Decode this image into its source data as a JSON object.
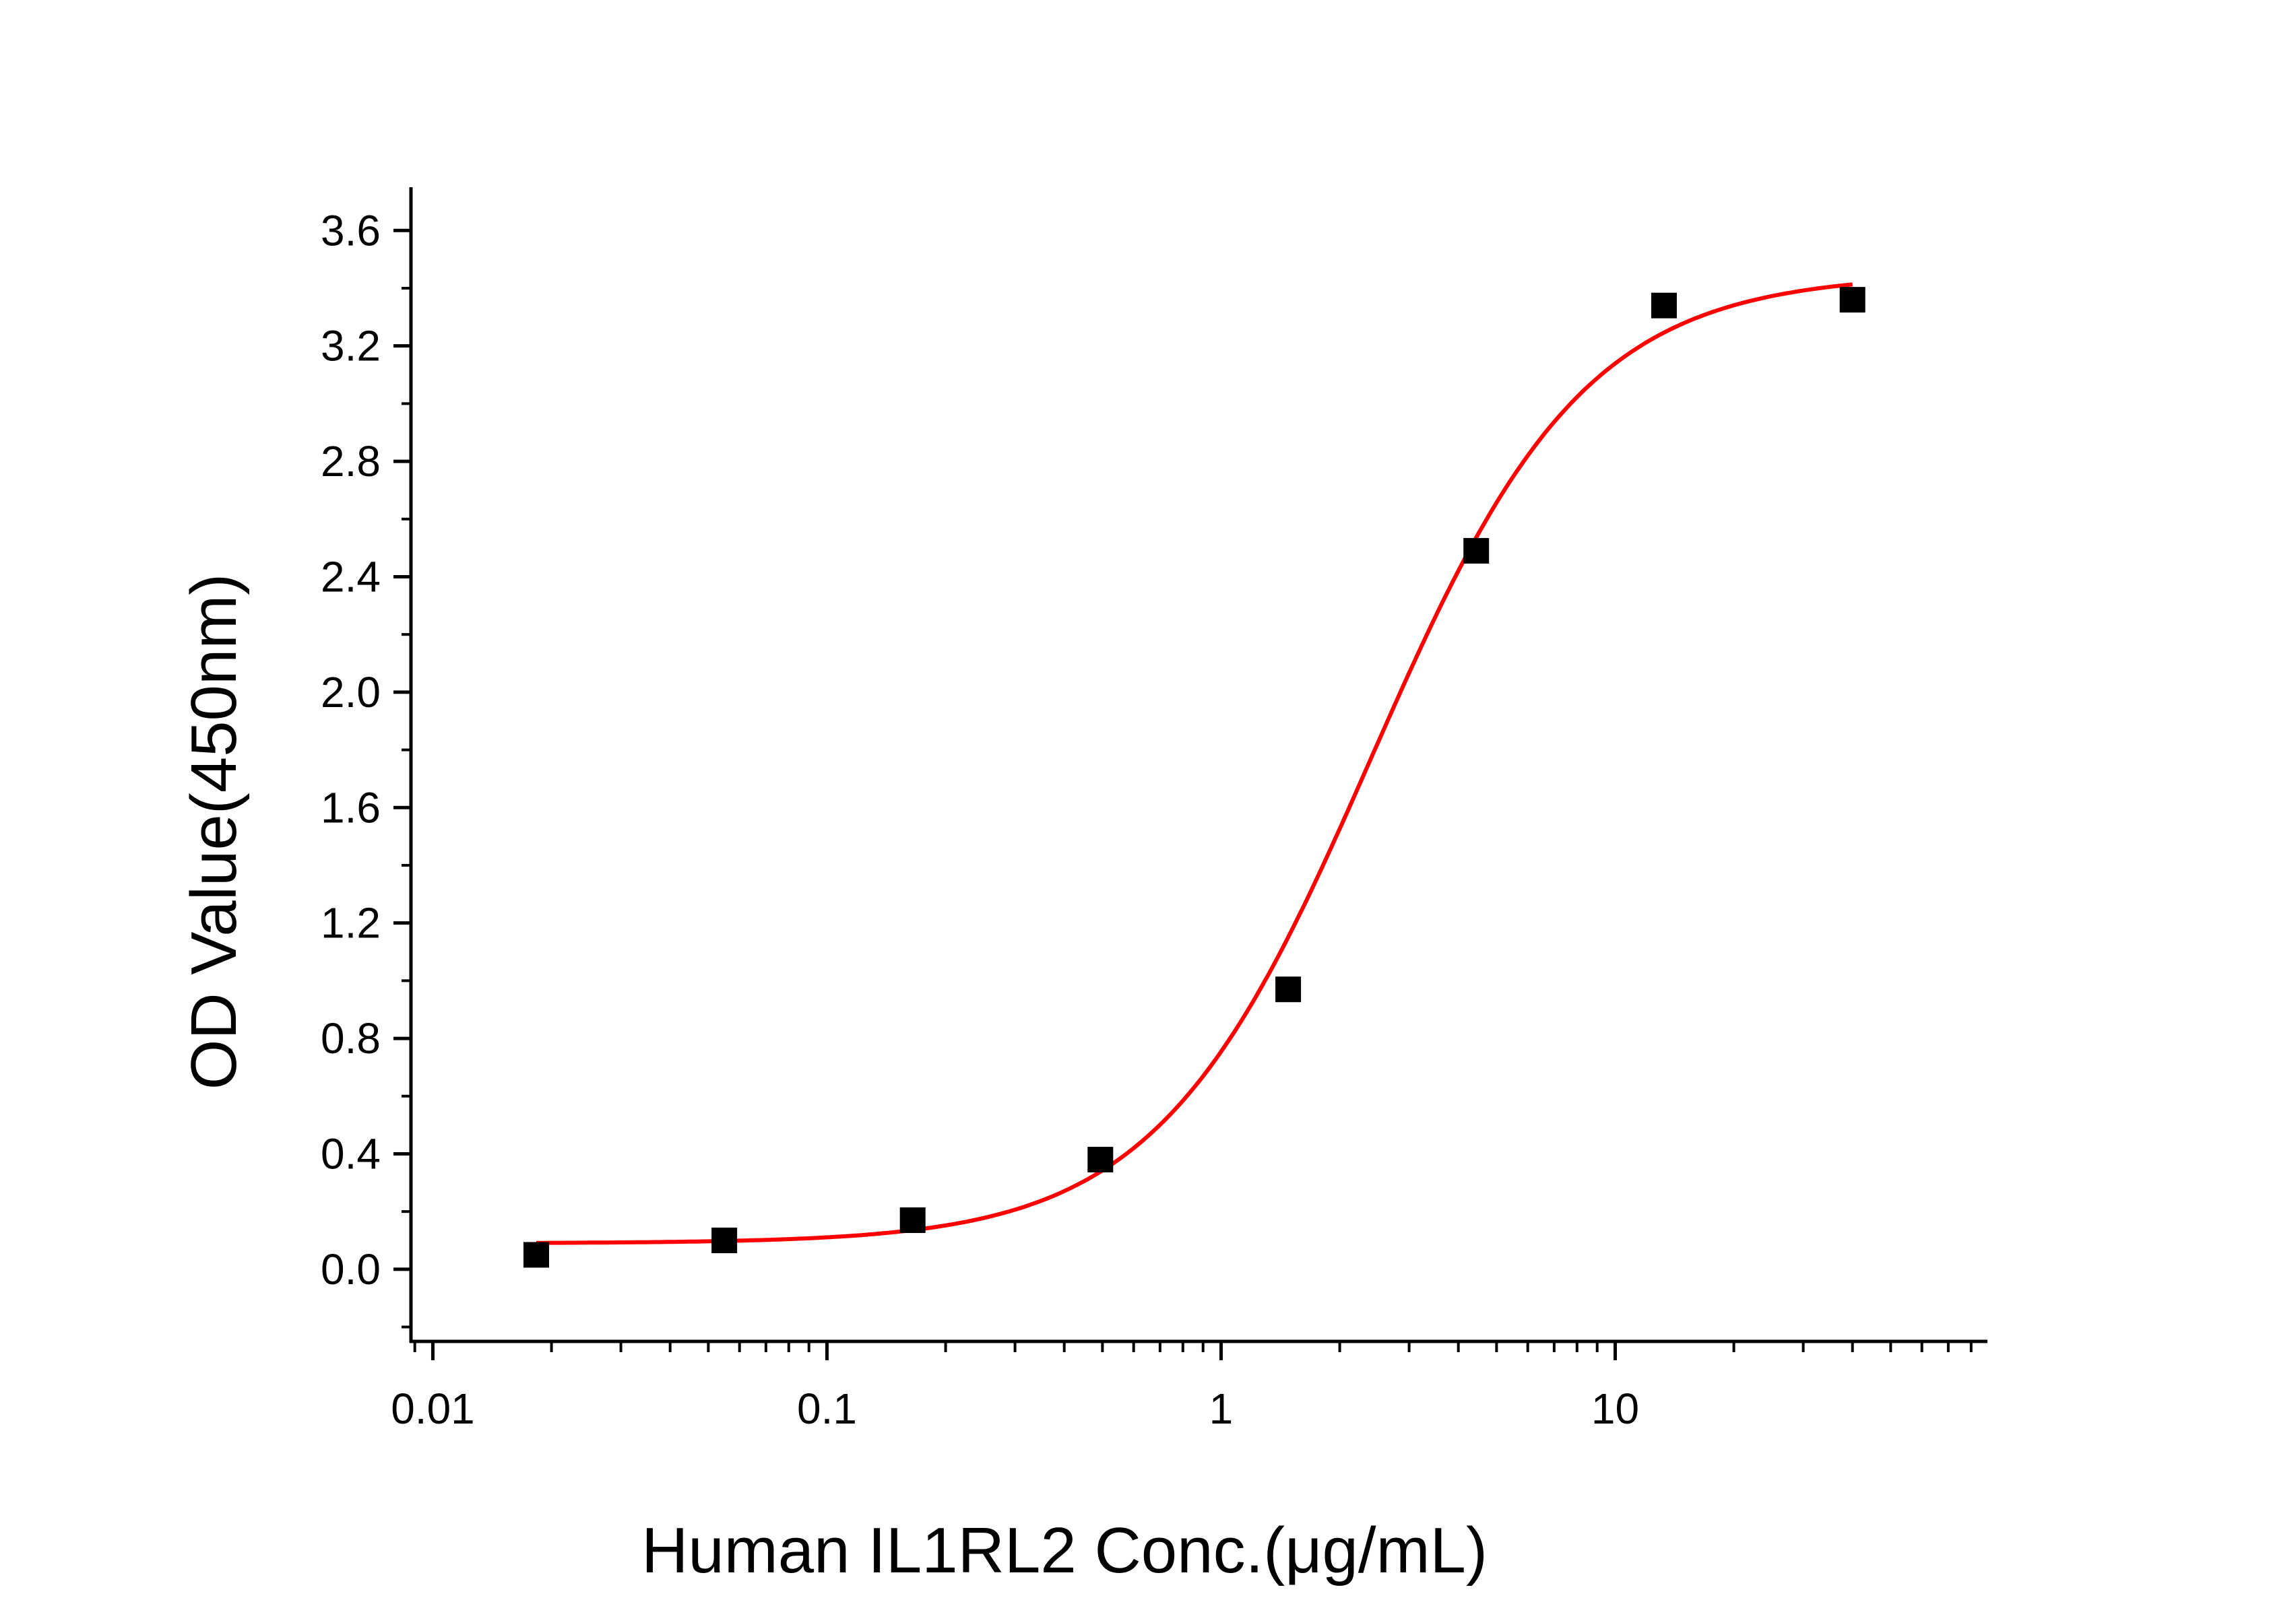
{
  "chart_data": {
    "type": "scatter",
    "title": "",
    "xlabel": "Human IL1RL2 Conc.(μg/mL)",
    "ylabel": "OD Value(450nm)",
    "x_scale": "log",
    "xlim": [
      0.0088,
      88
    ],
    "ylim": [
      -0.25,
      3.75
    ],
    "x_ticks": [
      0.01,
      0.1,
      1,
      10
    ],
    "x_tick_labels": [
      "0.01",
      "0.1",
      "1",
      "10"
    ],
    "y_ticks": [
      0.0,
      0.4,
      0.8,
      1.2,
      1.6,
      2.0,
      2.4,
      2.8,
      3.2,
      3.6
    ],
    "y_tick_labels": [
      "0.0",
      "0.4",
      "0.8",
      "1.2",
      "1.6",
      "2.0",
      "2.4",
      "2.8",
      "3.2",
      "3.6"
    ],
    "grid": false,
    "legend": "none",
    "points": {
      "x": [
        0.0183,
        0.0549,
        0.165,
        0.494,
        1.48,
        4.44,
        13.3,
        40
      ],
      "y": [
        0.05,
        0.1,
        0.17,
        0.38,
        0.97,
        2.49,
        3.34,
        3.36
      ],
      "color": "#000000",
      "marker": "square"
    },
    "fit_curve": {
      "model": "4PL",
      "bottom": 0.09,
      "top": 3.45,
      "ec50": 2.4,
      "hill": 1.6,
      "x_range": [
        0.0183,
        40
      ],
      "color": "#ff0000"
    }
  }
}
